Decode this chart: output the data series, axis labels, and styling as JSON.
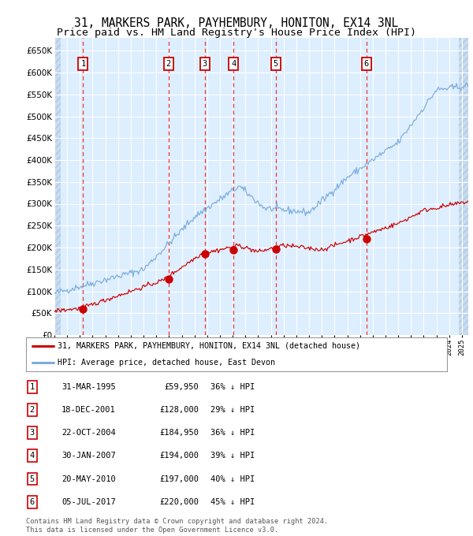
{
  "title": "31, MARKERS PARK, PAYHEMBURY, HONITON, EX14 3NL",
  "subtitle": "Price paid vs. HM Land Registry's House Price Index (HPI)",
  "title_fontsize": 10.5,
  "subtitle_fontsize": 9.5,
  "plot_bg_color": "#ddeeff",
  "ylim": [
    0,
    680000
  ],
  "yticks": [
    0,
    50000,
    100000,
    150000,
    200000,
    250000,
    300000,
    350000,
    400000,
    450000,
    500000,
    550000,
    600000,
    650000
  ],
  "sales": [
    {
      "label": "1",
      "date": "31-MAR-1995",
      "year": 1995.25,
      "price": 59950
    },
    {
      "label": "2",
      "date": "18-DEC-2001",
      "year": 2001.96,
      "price": 128000
    },
    {
      "label": "3",
      "date": "22-OCT-2004",
      "year": 2004.81,
      "price": 184950
    },
    {
      "label": "4",
      "date": "30-JAN-2007",
      "year": 2007.08,
      "price": 194000
    },
    {
      "label": "5",
      "date": "20-MAY-2010",
      "year": 2010.38,
      "price": 197000
    },
    {
      "label": "6",
      "date": "05-JUL-2017",
      "year": 2017.51,
      "price": 220000
    }
  ],
  "legend_label_red": "31, MARKERS PARK, PAYHEMBURY, HONITON, EX14 3NL (detached house)",
  "legend_label_blue": "HPI: Average price, detached house, East Devon",
  "table_rows": [
    [
      "1",
      "31-MAR-1995",
      "£59,950",
      "36% ↓ HPI"
    ],
    [
      "2",
      "18-DEC-2001",
      "£128,000",
      "29% ↓ HPI"
    ],
    [
      "3",
      "22-OCT-2004",
      "£184,950",
      "36% ↓ HPI"
    ],
    [
      "4",
      "30-JAN-2007",
      "£194,000",
      "39% ↓ HPI"
    ],
    [
      "5",
      "20-MAY-2010",
      "£197,000",
      "40% ↓ HPI"
    ],
    [
      "6",
      "05-JUL-2017",
      "£220,000",
      "45% ↓ HPI"
    ]
  ],
  "footer": "Contains HM Land Registry data © Crown copyright and database right 2024.\nThis data is licensed under the Open Government Licence v3.0.",
  "red_color": "#cc0000",
  "blue_color": "#7aaddb",
  "dashed_color": "#ee3333",
  "xmin": 1993.0,
  "xmax": 2025.5
}
